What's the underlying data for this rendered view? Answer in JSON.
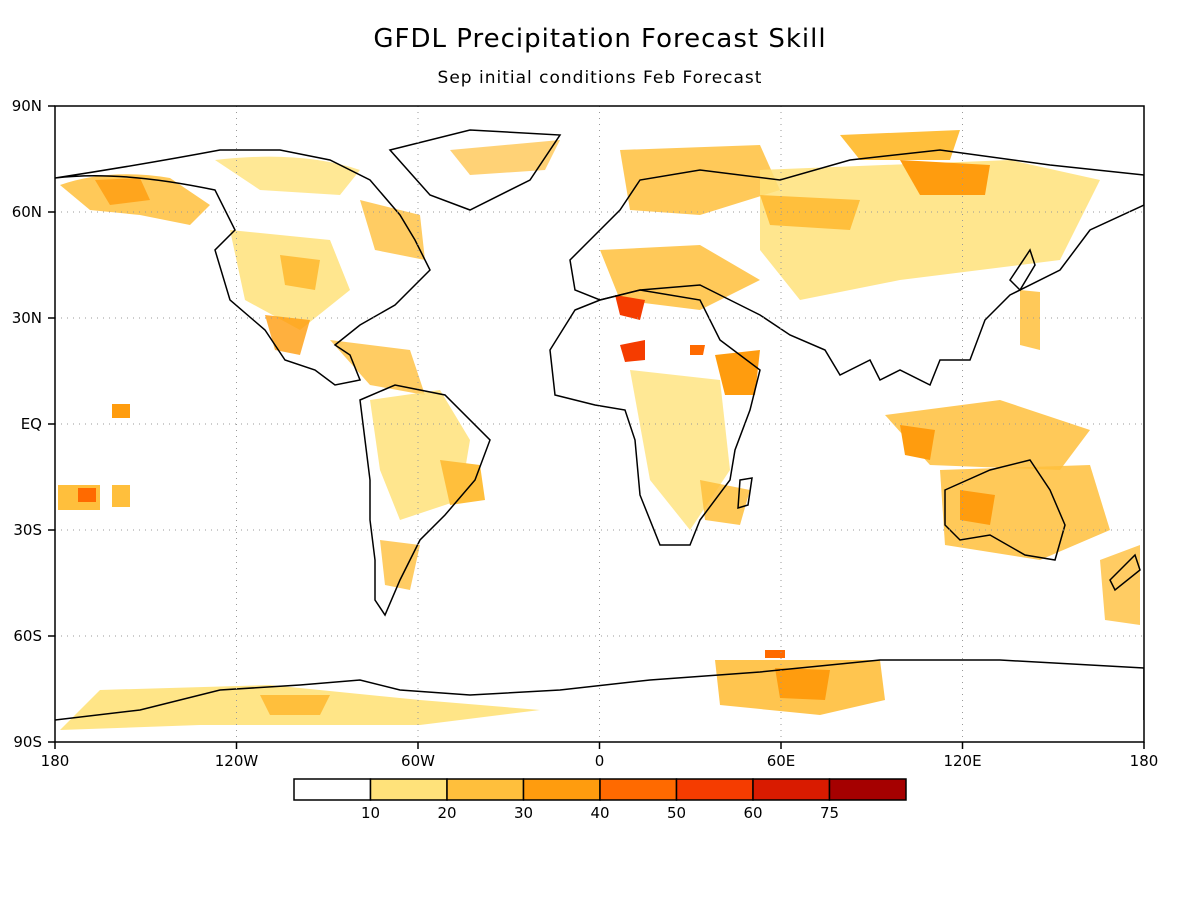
{
  "title": "GFDL Precipitation Forecast Skill",
  "subtitle": "Sep initial conditions  Feb Forecast",
  "map": {
    "projection": "cylindrical equidistant",
    "lon_range": [
      -180,
      180
    ],
    "lat_range": [
      -90,
      90
    ],
    "grid": "dotted",
    "lat_labels": [
      "90N",
      "60N",
      "30N",
      "EQ",
      "30S",
      "60S",
      "90S"
    ],
    "lon_labels": [
      "180",
      "120W",
      "60W",
      "0",
      "60E",
      "120E",
      "180"
    ]
  },
  "colorbar": {
    "levels": [
      "10",
      "20",
      "30",
      "40",
      "50",
      "60",
      "75"
    ],
    "colors": [
      "#ffffff",
      "#ffe27a",
      "#ffbf3c",
      "#ff9c0e",
      "#ff6a00",
      "#f53c00",
      "#d91b00",
      "#a50000"
    ]
  }
}
